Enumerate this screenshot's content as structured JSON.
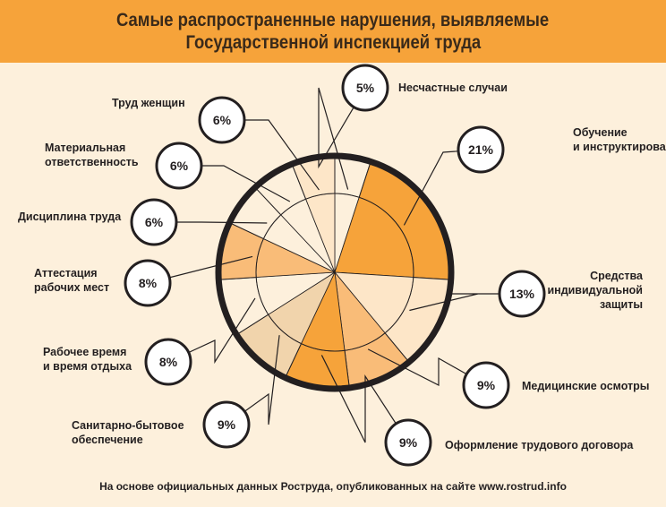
{
  "title_line1": "Самые распространенные нарушения, выявляемые",
  "title_line2": "Государственной инспекцией труда",
  "footer": "На основе официальных данных Роструда, опубликованных на сайте www.rostrud.info",
  "colors": {
    "header": "#f6a33a",
    "background": "#fdf0dc",
    "ring": "#231f20",
    "slices": [
      "#fdf0dc",
      "#f6a33a",
      "#fde6c8",
      "#f9bc78",
      "#f6a33a",
      "#f1d4ac",
      "#fdf0dc",
      "#f9bc78",
      "#fdf0dc",
      "#fdf0dc",
      "#fde6c8"
    ]
  },
  "chart_data": {
    "type": "pie",
    "title": "Самые распространенные нарушения, выявляемые Государственной инспекцией труда",
    "unit": "%",
    "slices": [
      {
        "label": "Несчастные случаи",
        "value": 5
      },
      {
        "label": "Обучение и инструктирование",
        "value": 21
      },
      {
        "label": "Средства индивидуальной защиты",
        "value": 13
      },
      {
        "label": "Медицинские осмотры",
        "value": 9
      },
      {
        "label": "Оформление трудового договора",
        "value": 9
      },
      {
        "label": "Санитарно-бытовое обеспечение",
        "value": 9
      },
      {
        "label": "Рабочее время и время отдыха",
        "value": 8
      },
      {
        "label": "Аттестация рабочих мест",
        "value": 8
      },
      {
        "label": "Дисциплина труда",
        "value": 6
      },
      {
        "label": "Материальная ответственность",
        "value": 6
      },
      {
        "label": "Труд женщин",
        "value": 6
      }
    ],
    "value_labels": [
      "5%",
      "21%",
      "13%",
      "9%",
      "9%",
      "9%",
      "8%",
      "8%",
      "6%",
      "6%",
      "6%"
    ],
    "category_labels": [
      [
        "Несчастные случаи"
      ],
      [
        "Обучение",
        "и инструктирование"
      ],
      [
        "Средства",
        "индивидуальной",
        "защиты"
      ],
      [
        "Медицинские осмотры"
      ],
      [
        "Оформление трудового договора"
      ],
      [
        "Санитарно-бытовое",
        "обеспечение"
      ],
      [
        "Рабочее время",
        "и время отдыха"
      ],
      [
        "Аттестация",
        "рабочих мест"
      ],
      [
        "Дисциплина труда"
      ],
      [
        "Материальная",
        "ответственность"
      ],
      [
        "Труд женщин"
      ]
    ]
  }
}
